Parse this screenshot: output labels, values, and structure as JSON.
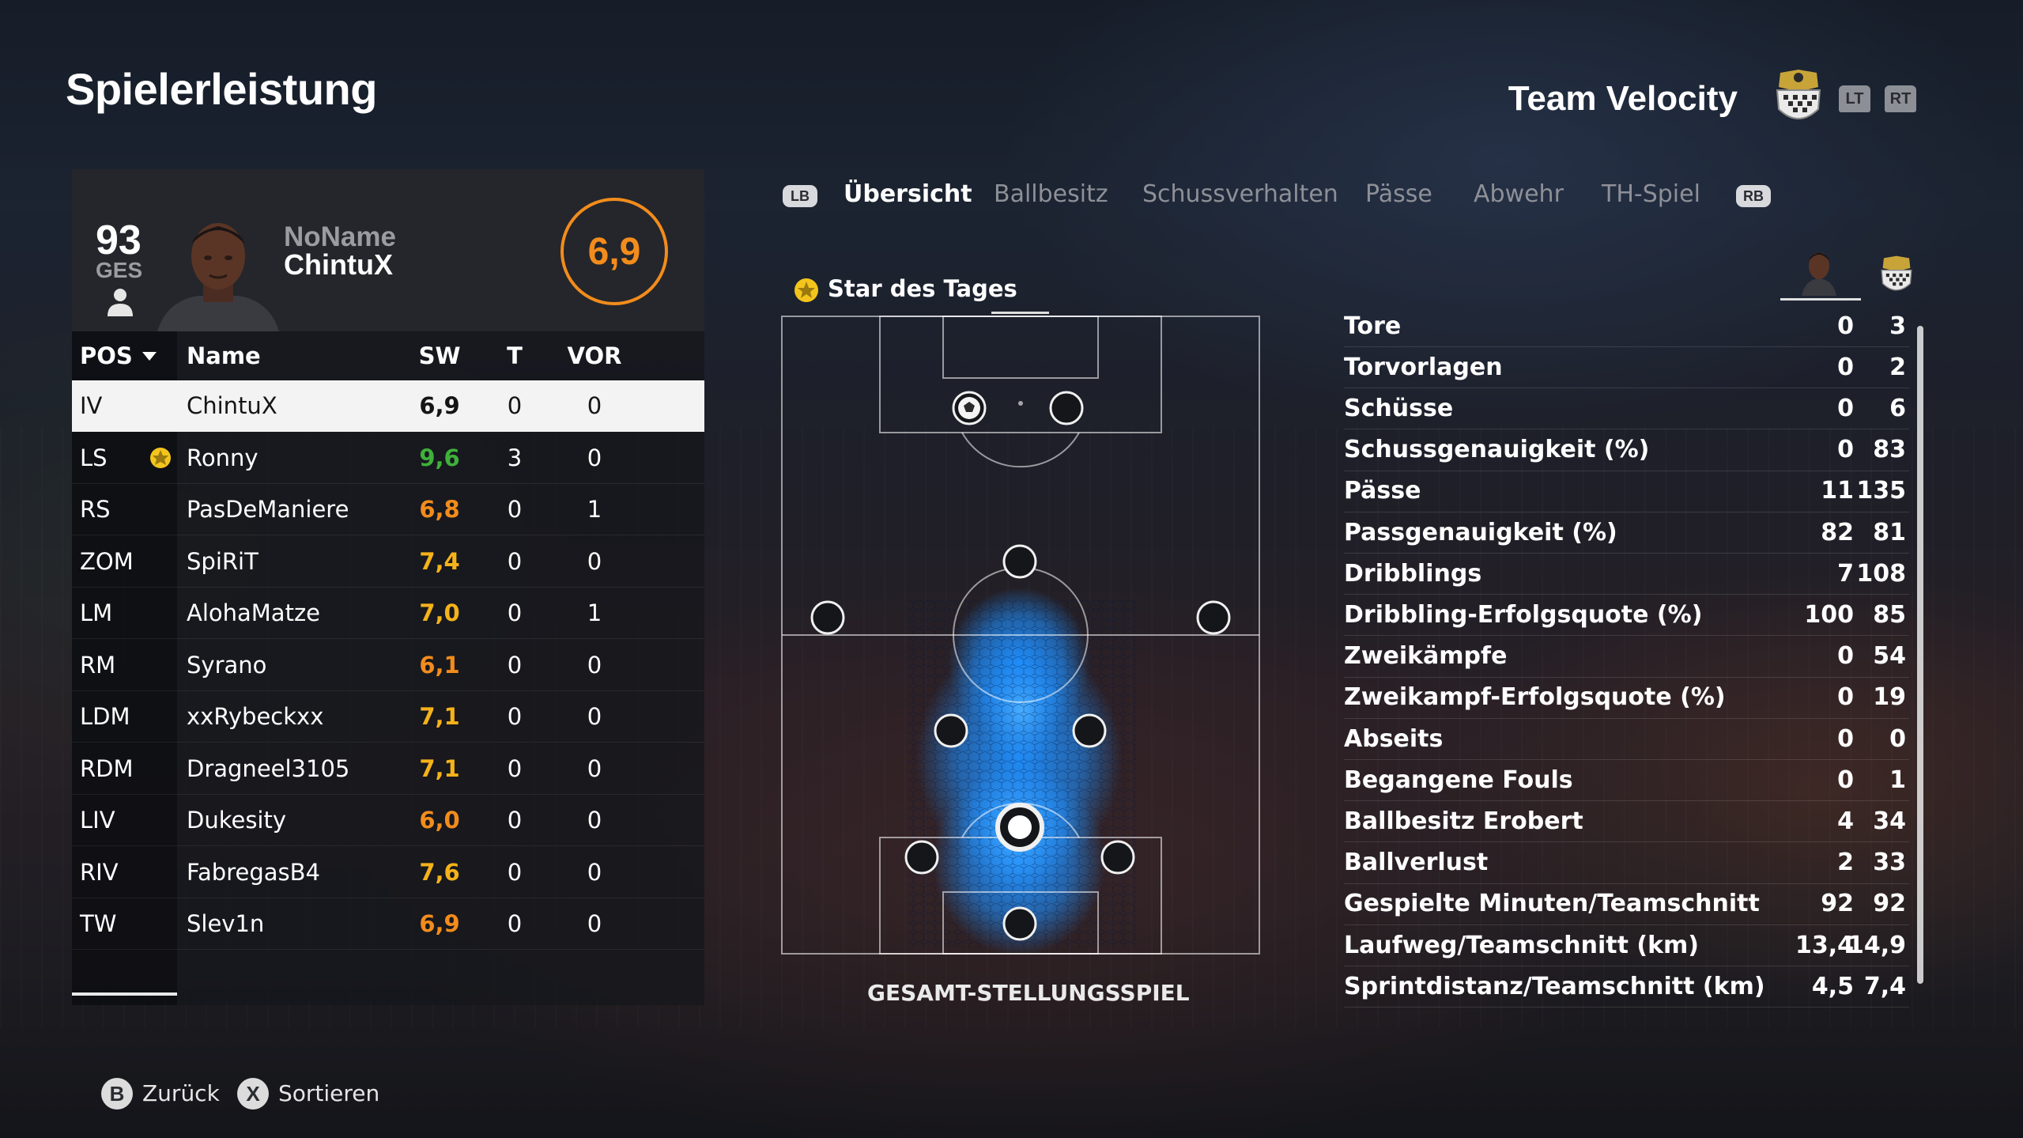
{
  "page": {
    "title": "Spielerleistung"
  },
  "team": {
    "name": "Team Velocity",
    "crest_icon": "team-crest-icon"
  },
  "header_buttons": {
    "lt": "LT",
    "rt": "RT"
  },
  "player_card": {
    "ges_value": "93",
    "ges_label": "GES",
    "name_line1": "NoName",
    "name_line2": "ChintuX",
    "rating": "6,9",
    "rating_color": "#f28c1c"
  },
  "table": {
    "headers": {
      "pos": "POS",
      "name": "Name",
      "sw": "SW",
      "t": "T",
      "vor": "VOR"
    },
    "rows": [
      {
        "pos": "IV",
        "name": "ChintuX",
        "sw": "6,9",
        "sw_color": "#151515",
        "t": "0",
        "vor": "0",
        "selected": true,
        "star": false
      },
      {
        "pos": "LS",
        "name": "Ronny",
        "sw": "9,6",
        "sw_color": "#3fb13a",
        "t": "3",
        "vor": "0",
        "selected": false,
        "star": true
      },
      {
        "pos": "RS",
        "name": "PasDeManiere",
        "sw": "6,8",
        "sw_color": "#f28c1c",
        "t": "0",
        "vor": "1",
        "selected": false,
        "star": false
      },
      {
        "pos": "ZOM",
        "name": "SpiRiT",
        "sw": "7,4",
        "sw_color": "#f5b21a",
        "t": "0",
        "vor": "0",
        "selected": false,
        "star": false
      },
      {
        "pos": "LM",
        "name": "AlohaMatze",
        "sw": "7,0",
        "sw_color": "#f5b21a",
        "t": "0",
        "vor": "1",
        "selected": false,
        "star": false
      },
      {
        "pos": "RM",
        "name": "Syrano",
        "sw": "6,1",
        "sw_color": "#f28c1c",
        "t": "0",
        "vor": "0",
        "selected": false,
        "star": false
      },
      {
        "pos": "LDM",
        "name": "xxRybeckxx",
        "sw": "7,1",
        "sw_color": "#f5b21a",
        "t": "0",
        "vor": "0",
        "selected": false,
        "star": false
      },
      {
        "pos": "RDM",
        "name": "Dragneel3105",
        "sw": "7,1",
        "sw_color": "#f5b21a",
        "t": "0",
        "vor": "0",
        "selected": false,
        "star": false
      },
      {
        "pos": "LIV",
        "name": "Dukesity",
        "sw": "6,0",
        "sw_color": "#f28c1c",
        "t": "0",
        "vor": "0",
        "selected": false,
        "star": false
      },
      {
        "pos": "RIV",
        "name": "FabregasB4",
        "sw": "7,6",
        "sw_color": "#f5b21a",
        "t": "0",
        "vor": "0",
        "selected": false,
        "star": false
      },
      {
        "pos": "TW",
        "name": "Slev1n",
        "sw": "6,9",
        "sw_color": "#f28c1c",
        "t": "0",
        "vor": "0",
        "selected": false,
        "star": false
      }
    ]
  },
  "tabs": {
    "lb": "LB",
    "rb": "RB",
    "items": [
      "Übersicht",
      "Ballbesitz",
      "Schussverhalten",
      "Pässe",
      "Abwehr",
      "TH-Spiel"
    ],
    "active": "Übersicht"
  },
  "star_of_day": {
    "label": "Star des Tages"
  },
  "pitch": {
    "caption": "GESAMT-STELLUNGSSPIEL",
    "heat_color": "#1e8fff"
  },
  "stats": [
    {
      "label": "Tore",
      "player": "0",
      "team": "3"
    },
    {
      "label": "Torvorlagen",
      "player": "0",
      "team": "2"
    },
    {
      "label": "Schüsse",
      "player": "0",
      "team": "6"
    },
    {
      "label": "Schussgenauigkeit (%)",
      "player": "0",
      "team": "83"
    },
    {
      "label": "Pässe",
      "player": "11",
      "team": "135"
    },
    {
      "label": "Passgenauigkeit (%)",
      "player": "82",
      "team": "81"
    },
    {
      "label": "Dribblings",
      "player": "7",
      "team": "108"
    },
    {
      "label": "Dribbling-Erfolgsquote (%)",
      "player": "100",
      "team": "85"
    },
    {
      "label": "Zweikämpfe",
      "player": "0",
      "team": "54"
    },
    {
      "label": "Zweikampf-Erfolgsquote (%)",
      "player": "0",
      "team": "19"
    },
    {
      "label": "Abseits",
      "player": "0",
      "team": "0"
    },
    {
      "label": "Begangene Fouls",
      "player": "0",
      "team": "1"
    },
    {
      "label": "Ballbesitz Erobert",
      "player": "4",
      "team": "34"
    },
    {
      "label": "Ballverlust",
      "player": "2",
      "team": "33"
    },
    {
      "label": "Gespielte Minuten/Teamschnitt",
      "player": "92",
      "team": "92"
    },
    {
      "label": "Laufweg/Teamschnitt (km)",
      "player": "13,4",
      "team": "14,9"
    },
    {
      "label": "Sprintdistanz/Teamschnitt (km)",
      "player": "4,5",
      "team": "7,4"
    }
  ],
  "footer": {
    "back_key": "B",
    "back_label": "Zurück",
    "sort_key": "X",
    "sort_label": "Sortieren"
  }
}
